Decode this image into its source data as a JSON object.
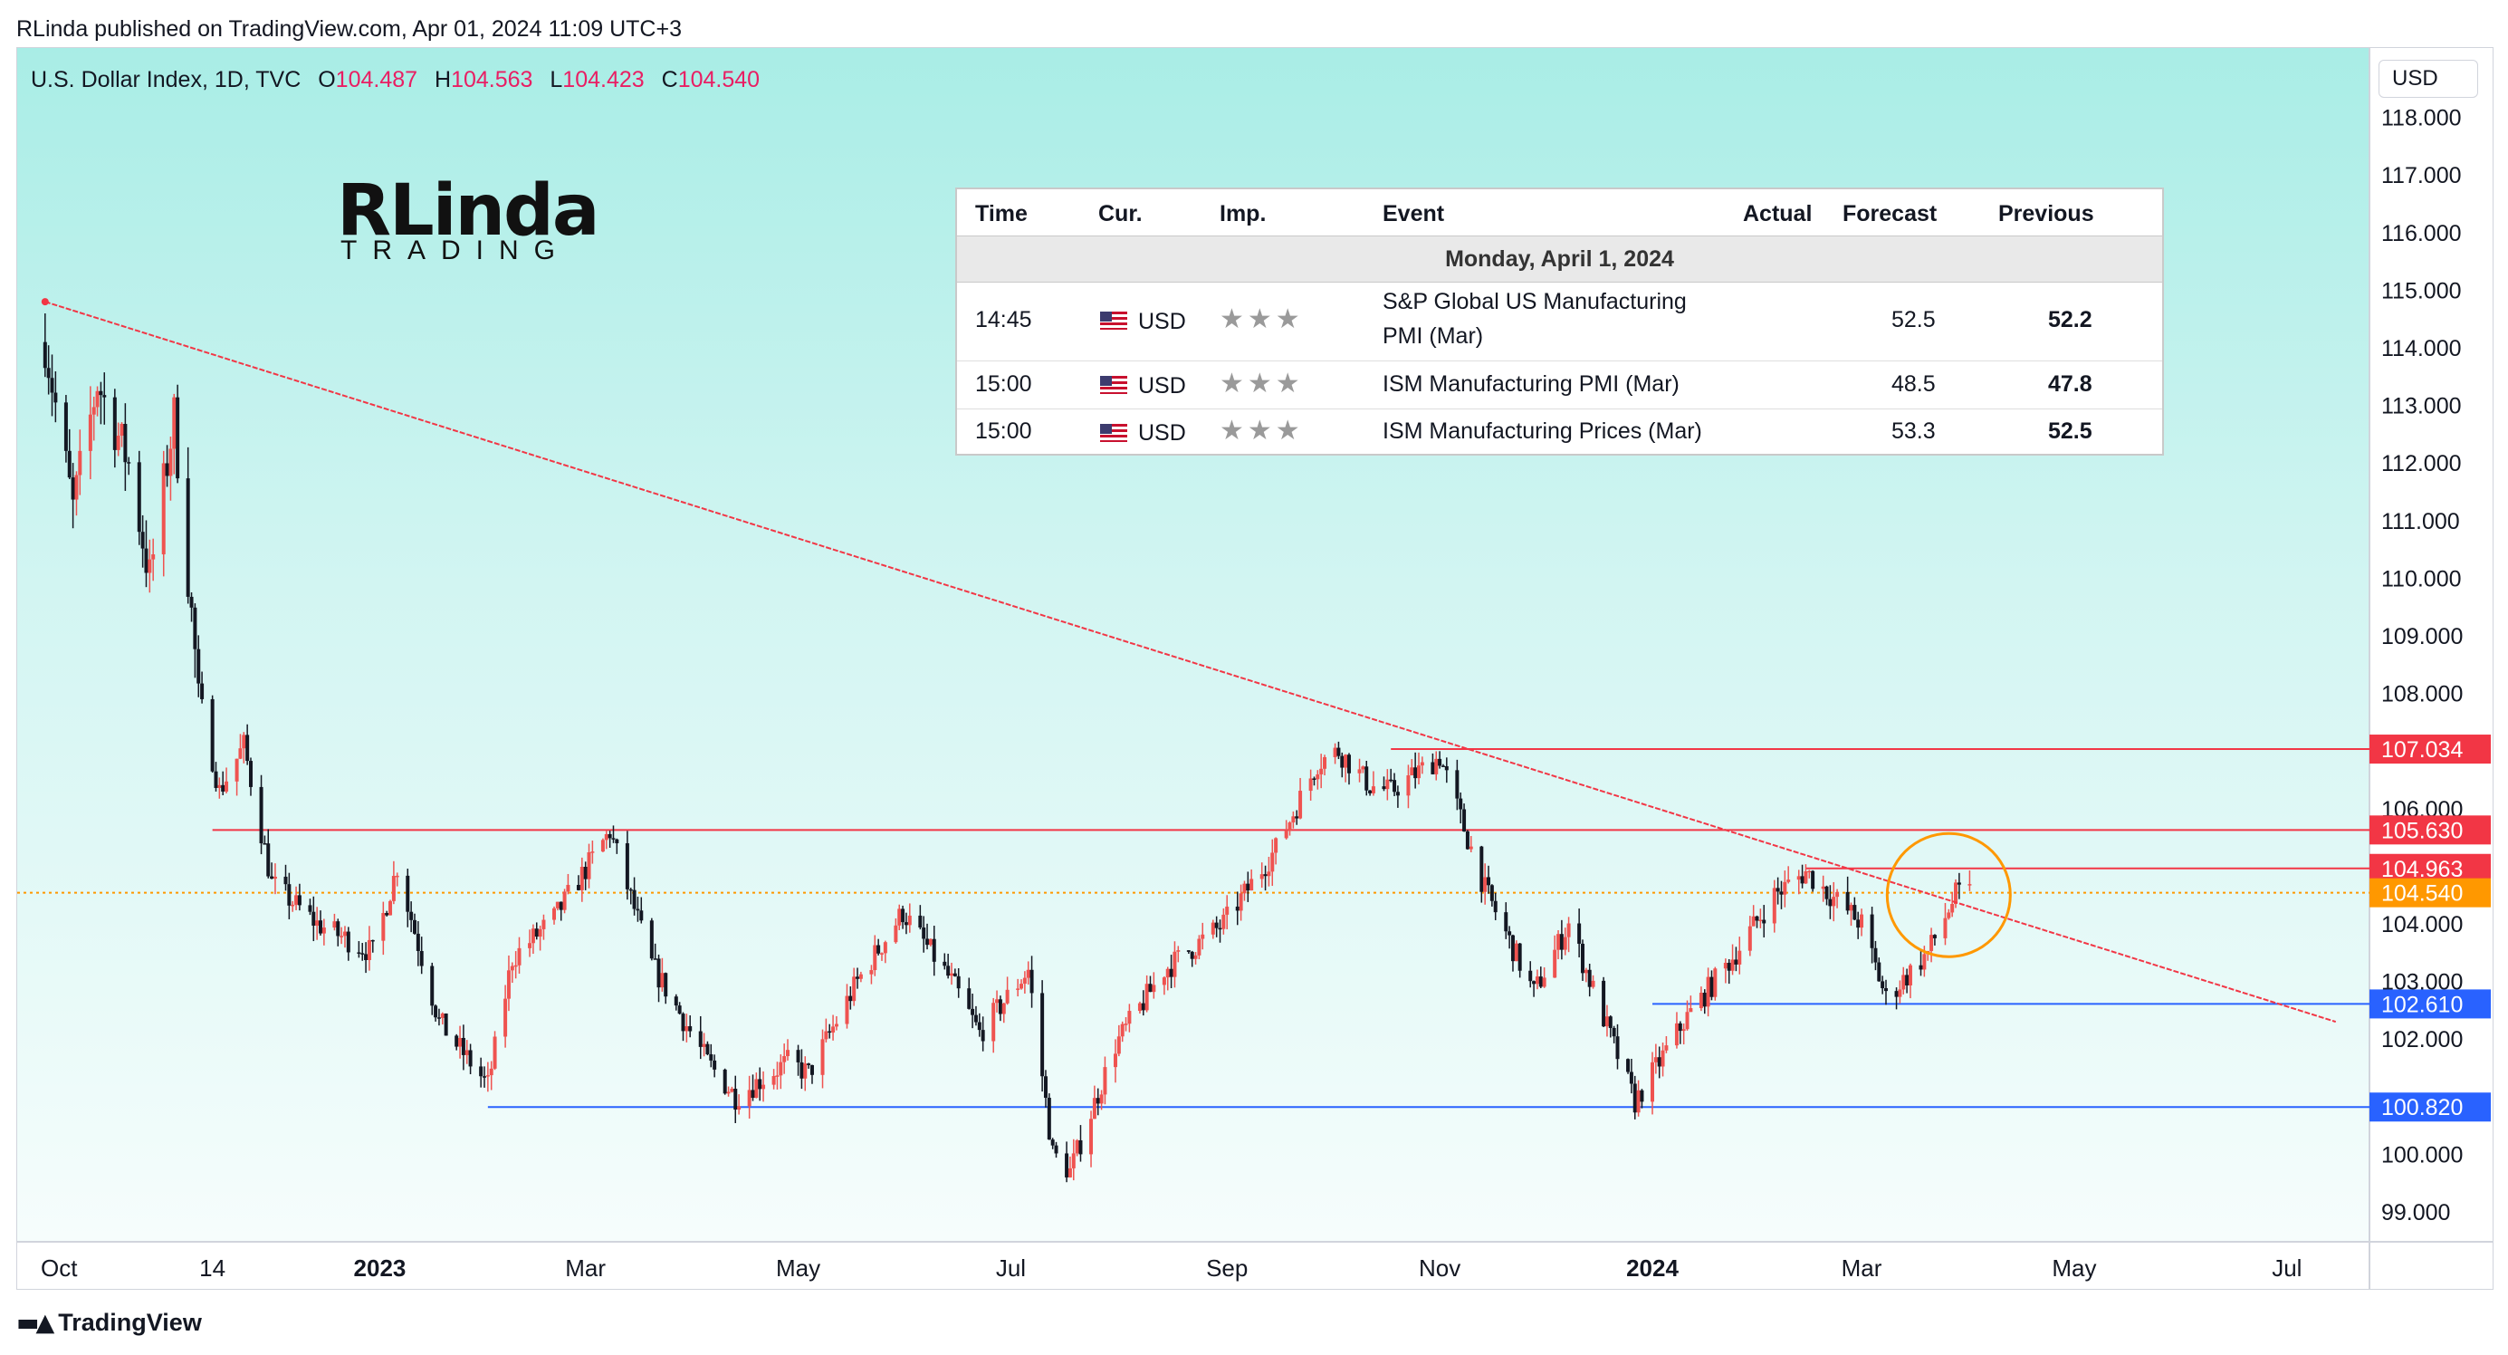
{
  "header": {
    "published_line": "RLinda published on TradingView.com, Apr 01, 2024 11:09 UTC+3"
  },
  "legend": {
    "symbol": "U.S. Dollar Index, 1D, TVC",
    "open_label": "O",
    "open": "104.487",
    "high_label": "H",
    "high": "104.563",
    "low_label": "L",
    "low": "104.423",
    "close_label": "C",
    "close": "104.540"
  },
  "logo": {
    "line1": "RLinda",
    "line2": "TRADING"
  },
  "currency_button": "USD",
  "calendar": {
    "headers": [
      "Time",
      "Cur.",
      "Imp.",
      "Event",
      "Actual",
      "Forecast",
      "Previous"
    ],
    "date_row": "Monday, April 1, 2024",
    "rows": [
      {
        "time": "14:45",
        "currency": "USD",
        "importance": "★★★",
        "event_line1": "S&P Global US Manufacturing",
        "event_line2": "PMI (Mar)",
        "actual": "",
        "forecast": "52.5",
        "previous": "52.2"
      },
      {
        "time": "15:00",
        "currency": "USD",
        "importance": "★★★",
        "event_line1": "ISM Manufacturing PMI (Mar)",
        "event_line2": "",
        "actual": "",
        "forecast": "48.5",
        "previous": "47.8"
      },
      {
        "time": "15:00",
        "currency": "USD",
        "importance": "★★★",
        "event_line1": "ISM Manufacturing Prices (Mar)",
        "event_line2": "",
        "actual": "",
        "forecast": "53.3",
        "previous": "52.5"
      }
    ]
  },
  "footer": {
    "brand": "TradingView"
  },
  "colors": {
    "up": "#ef5350",
    "down": "#131722",
    "resistance": "#f23645",
    "support": "#2962ff",
    "last_price": "#ff9800"
  },
  "chart_data": {
    "type": "candlestick",
    "y_axis": {
      "min": 99.0,
      "max": 118.0,
      "ticks": [
        "118.000",
        "117.000",
        "116.000",
        "115.000",
        "114.000",
        "113.000",
        "112.000",
        "111.000",
        "110.000",
        "109.000",
        "108.000",
        "106.000",
        "104.000",
        "103.000",
        "102.000",
        "100.000",
        "99.000"
      ]
    },
    "x_axis": {
      "labels": [
        {
          "text": "Oct",
          "date": "2022-10-01",
          "bold": false
        },
        {
          "text": "14",
          "date": "2022-11-14",
          "bold": false
        },
        {
          "text": "2023",
          "date": "2023-01-01",
          "bold": true
        },
        {
          "text": "Mar",
          "date": "2023-03-01",
          "bold": false
        },
        {
          "text": "May",
          "date": "2023-05-01",
          "bold": false
        },
        {
          "text": "Jul",
          "date": "2023-07-01",
          "bold": false
        },
        {
          "text": "Sep",
          "date": "2023-09-01",
          "bold": false
        },
        {
          "text": "Nov",
          "date": "2023-11-01",
          "bold": false
        },
        {
          "text": "2024",
          "date": "2024-01-01",
          "bold": true
        },
        {
          "text": "Mar",
          "date": "2024-03-01",
          "bold": false
        },
        {
          "text": "May",
          "date": "2024-05-01",
          "bold": false
        },
        {
          "text": "Jul",
          "date": "2024-07-01",
          "bold": false
        }
      ]
    },
    "price_path": [
      [
        "2022-09-27",
        114.1
      ],
      [
        "2022-10-05",
        111.2
      ],
      [
        "2022-10-12",
        113.4
      ],
      [
        "2022-10-21",
        112.0
      ],
      [
        "2022-10-27",
        110.0
      ],
      [
        "2022-11-03",
        112.8
      ],
      [
        "2022-11-10",
        108.0
      ],
      [
        "2022-11-16",
        106.3
      ],
      [
        "2022-11-23",
        107.1
      ],
      [
        "2022-12-01",
        104.7
      ],
      [
        "2022-12-14",
        104.0
      ],
      [
        "2022-12-30",
        103.5
      ],
      [
        "2023-01-06",
        105.0
      ],
      [
        "2023-01-18",
        102.3
      ],
      [
        "2023-02-01",
        101.2
      ],
      [
        "2023-02-08",
        103.4
      ],
      [
        "2023-02-20",
        104.1
      ],
      [
        "2023-03-08",
        105.6
      ],
      [
        "2023-03-20",
        103.3
      ],
      [
        "2023-04-05",
        101.6
      ],
      [
        "2023-04-13",
        101.0
      ],
      [
        "2023-04-28",
        101.6
      ],
      [
        "2023-05-04",
        101.4
      ],
      [
        "2023-05-18",
        103.0
      ],
      [
        "2023-05-31",
        104.2
      ],
      [
        "2023-06-14",
        103.0
      ],
      [
        "2023-06-22",
        102.1
      ],
      [
        "2023-07-06",
        103.2
      ],
      [
        "2023-07-13",
        100.0
      ],
      [
        "2023-07-18",
        99.7
      ],
      [
        "2023-07-31",
        101.9
      ],
      [
        "2023-08-14",
        103.2
      ],
      [
        "2023-08-31",
        104.0
      ],
      [
        "2023-09-15",
        105.3
      ],
      [
        "2023-09-27",
        106.8
      ],
      [
        "2023-10-03",
        107.0
      ],
      [
        "2023-10-12",
        106.4
      ],
      [
        "2023-10-18",
        106.3
      ],
      [
        "2023-11-01",
        106.9
      ],
      [
        "2023-11-14",
        104.6
      ],
      [
        "2023-11-28",
        102.8
      ],
      [
        "2023-12-08",
        104.0
      ],
      [
        "2023-12-27",
        100.9
      ],
      [
        "2024-01-10",
        102.3
      ],
      [
        "2024-01-25",
        103.5
      ],
      [
        "2024-02-05",
        104.5
      ],
      [
        "2024-02-14",
        104.9
      ],
      [
        "2024-03-01",
        104.0
      ],
      [
        "2024-03-08",
        102.7
      ],
      [
        "2024-03-20",
        103.5
      ],
      [
        "2024-03-28",
        104.5
      ],
      [
        "2024-04-01",
        104.54
      ]
    ],
    "overlays": {
      "trendline": {
        "from": [
          "2022-09-27",
          114.8
        ],
        "to": [
          "2024-07-15",
          102.3
        ]
      },
      "resistance_lines": [
        {
          "from": "2023-10-18",
          "value": 107.034,
          "label": "107.034"
        },
        {
          "from": "2022-11-14",
          "value": 105.63,
          "label": "105.630"
        },
        {
          "from": "2024-02-14",
          "value": 104.963,
          "label": "104.963"
        }
      ],
      "support_lines": [
        {
          "from": "2024-01-01",
          "value": 102.61,
          "label": "102.610"
        },
        {
          "from": "2023-02-01",
          "value": 100.82,
          "label": "100.820"
        }
      ],
      "last_price": {
        "value": 104.54,
        "label": "104.540"
      },
      "circle": {
        "center": [
          "2024-03-26",
          104.5
        ]
      }
    }
  }
}
